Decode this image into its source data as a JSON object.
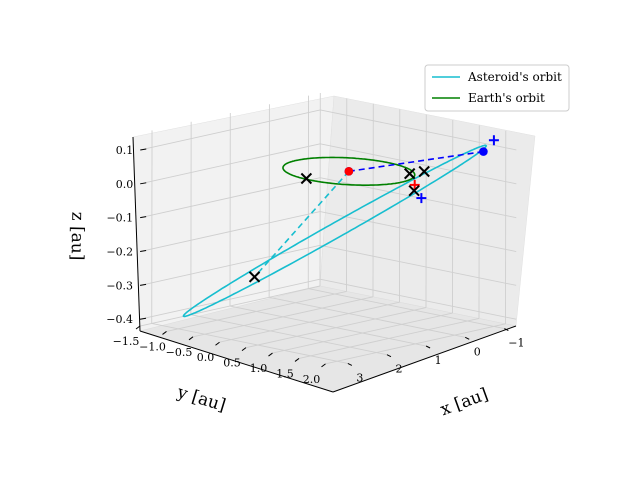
{
  "chart_data": {
    "type": "3d-line",
    "title": "",
    "xlabel": "x [au]",
    "ylabel": "y [au]",
    "zlabel": "z [au]",
    "x_ticks": [
      "−1.5",
      "−1.0",
      "−0.5",
      "0.0",
      "0.5",
      "1.0",
      "1.5",
      "2.0"
    ],
    "y_ticks": [
      "−1",
      "0",
      "1",
      "2",
      "3"
    ],
    "z_ticks": [
      "0.1",
      "0.0",
      "−0.1",
      "−0.2",
      "−0.3",
      "−0.4"
    ],
    "xlim": [
      -1.5,
      2.2
    ],
    "ylim": [
      -1.3,
      3.3
    ],
    "zlim": [
      -0.42,
      0.15
    ],
    "grid": true,
    "legend_position": "top-right",
    "colors": {
      "asteroid": "#17becf",
      "earth": "#008000",
      "blue_marker": "#0000ff",
      "red_marker": "#ff0000",
      "black_marker": "#000000"
    },
    "series": [
      {
        "name": "Asteroid's orbit",
        "kind": "ellipse-3d",
        "center": [
          0.55,
          1.1,
          -0.13
        ],
        "u": [
          1.3,
          -2.1,
          0.24
        ],
        "v": [
          0.25,
          0.12,
          0.0
        ],
        "color": "#17becf"
      },
      {
        "name": "Earth's orbit",
        "kind": "circle-3d",
        "center": [
          0.0,
          0.0,
          0.0
        ],
        "radius": 1.0,
        "color": "#008000"
      }
    ],
    "dashed_segments": [
      {
        "from": [
          0.0,
          0.0,
          0.0
        ],
        "to": [
          1.8,
          -1.0,
          0.09
        ],
        "color": "#0000ff"
      },
      {
        "from": [
          0.0,
          0.0,
          0.0
        ],
        "to": [
          -0.3,
          2.0,
          -0.27
        ],
        "color": "#17becf"
      }
    ],
    "points": [
      {
        "marker": "dot",
        "color": "#0000ff",
        "xyz": [
          1.8,
          -1.0,
          0.09
        ]
      },
      {
        "marker": "dot",
        "color": "#0000ff",
        "xyz": [
          0.0,
          0.0,
          0.0
        ]
      },
      {
        "marker": "dot",
        "color": "#ff0000",
        "xyz": [
          0.0,
          0.0,
          0.0
        ]
      },
      {
        "marker": "plus",
        "color": "#0000ff",
        "xyz": [
          1.85,
          -1.2,
          0.12
        ]
      },
      {
        "marker": "plus",
        "color": "#0000ff",
        "xyz": [
          1.0,
          -0.5,
          -0.06
        ]
      },
      {
        "marker": "plus",
        "color": "#ff0000",
        "xyz": [
          0.8,
          -0.6,
          -0.03
        ]
      },
      {
        "marker": "cross",
        "color": "#000000",
        "xyz": [
          -0.1,
          0.95,
          0.0
        ]
      },
      {
        "marker": "cross",
        "color": "#000000",
        "xyz": [
          1.0,
          -0.2,
          0.02
        ]
      },
      {
        "marker": "cross",
        "color": "#000000",
        "xyz": [
          1.2,
          -0.3,
          0.03
        ]
      },
      {
        "marker": "cross",
        "color": "#000000",
        "xyz": [
          0.9,
          -0.45,
          -0.04
        ]
      },
      {
        "marker": "cross",
        "color": "#000000",
        "xyz": [
          -0.3,
          2.0,
          -0.27
        ]
      }
    ]
  }
}
